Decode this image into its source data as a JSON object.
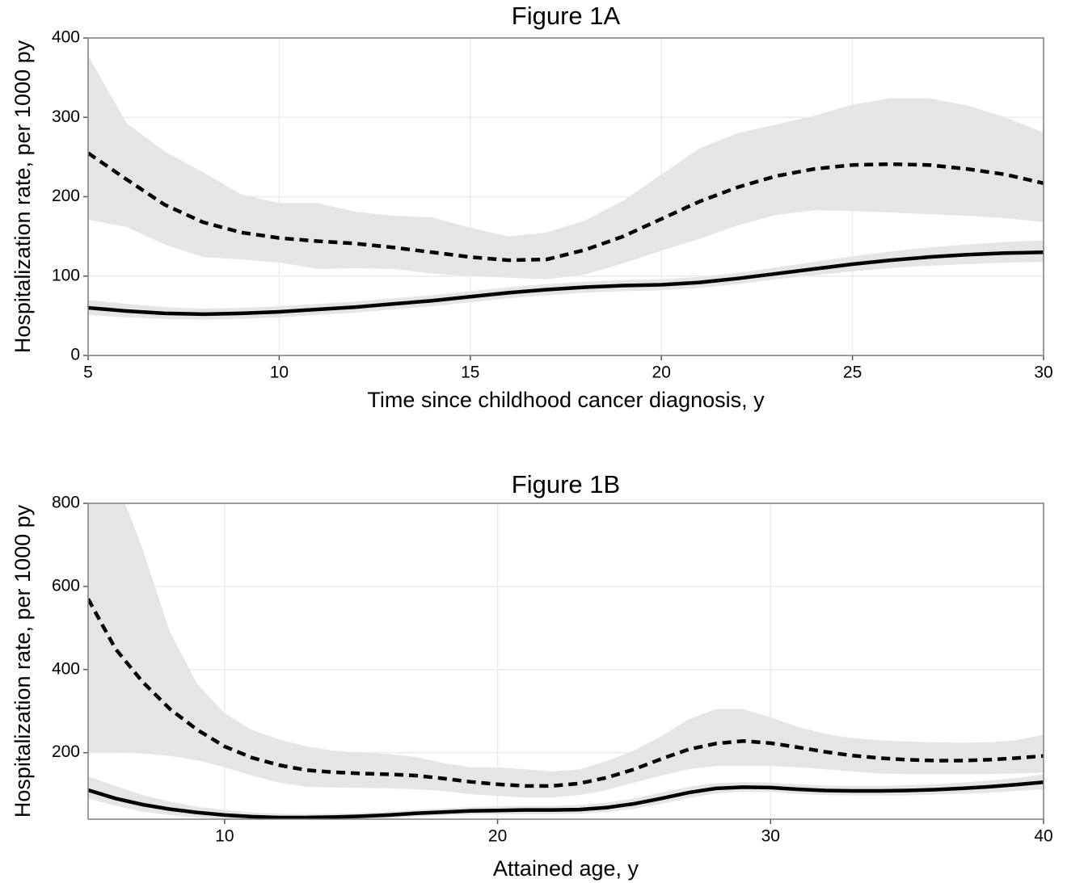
{
  "chart_data": [
    {
      "type": "line",
      "title": "Figure 1A",
      "x_label": "Time since childhood cancer diagnosis, y",
      "y_label": "Hospitalization rate, per 1000 py",
      "x": [
        5,
        6,
        7,
        8,
        9,
        10,
        11,
        12,
        13,
        14,
        15,
        16,
        17,
        18,
        19,
        20,
        21,
        22,
        23,
        24,
        25,
        26,
        27,
        28,
        29,
        30
      ],
      "xlim": [
        5,
        30
      ],
      "xticks": [
        5,
        10,
        15,
        20,
        25,
        30
      ],
      "ylim": [
        0,
        400
      ],
      "yticks": [
        0,
        100,
        200,
        300,
        400
      ],
      "grid": true,
      "band_color": "#e5e5e5",
      "series": [
        {
          "color": "#000000",
          "linestyle": "dashed",
          "values": [
            255,
            222,
            190,
            168,
            155,
            148,
            144,
            141,
            136,
            130,
            124,
            120,
            121,
            133,
            150,
            172,
            194,
            212,
            226,
            235,
            240,
            241,
            240,
            235,
            228,
            217
          ],
          "upper": [
            378,
            293,
            257,
            231,
            203,
            192,
            192,
            181,
            176,
            174,
            161,
            150,
            155,
            170,
            195,
            228,
            261,
            280,
            291,
            302,
            316,
            324,
            324,
            315,
            300,
            281
          ],
          "lower": [
            171,
            162,
            140,
            124,
            121,
            117,
            109,
            110,
            109,
            103,
            100,
            98,
            96,
            102,
            116,
            132,
            147,
            164,
            177,
            183,
            182,
            180,
            178,
            176,
            173,
            168
          ]
        },
        {
          "color": "#000000",
          "linestyle": "solid",
          "values": [
            60,
            56,
            53,
            52,
            53,
            55,
            58,
            61,
            65,
            69,
            74,
            79,
            83,
            86,
            88,
            89,
            92,
            97,
            103,
            109,
            115,
            120,
            124,
            127,
            129,
            130
          ],
          "upper": [
            70,
            65,
            61,
            59,
            60,
            62,
            65,
            68,
            72,
            76,
            81,
            86,
            90,
            93,
            95,
            96,
            99,
            104,
            111,
            118,
            125,
            131,
            136,
            140,
            143,
            145
          ],
          "lower": [
            51,
            48,
            46,
            45,
            46,
            48,
            51,
            54,
            58,
            62,
            67,
            72,
            76,
            79,
            81,
            82,
            85,
            90,
            96,
            101,
            106,
            110,
            113,
            115,
            117,
            118
          ]
        }
      ]
    },
    {
      "type": "line",
      "title": "Figure 1B",
      "x_label": "Attained age, y",
      "y_label": "Hospitalization rate, per 1000 py",
      "x": [
        5,
        6,
        7,
        8,
        9,
        10,
        11,
        12,
        13,
        14,
        15,
        16,
        17,
        18,
        19,
        20,
        21,
        22,
        23,
        24,
        25,
        26,
        27,
        28,
        29,
        30,
        31,
        32,
        33,
        34,
        35,
        36,
        37,
        38,
        39,
        40
      ],
      "xlim": [
        5,
        40
      ],
      "xticks": [
        10,
        20,
        30,
        40
      ],
      "ylim": [
        40,
        800
      ],
      "yticks": [
        200,
        400,
        600,
        800
      ],
      "grid": true,
      "band_color": "#e5e5e5",
      "series": [
        {
          "color": "#000000",
          "linestyle": "dashed",
          "values": [
            570,
            450,
            370,
            305,
            255,
            215,
            188,
            170,
            158,
            153,
            150,
            148,
            145,
            138,
            130,
            124,
            120,
            120,
            126,
            140,
            160,
            185,
            208,
            222,
            228,
            223,
            213,
            202,
            193,
            187,
            183,
            181,
            181,
            183,
            187,
            192
          ],
          "upper": [
            900,
            860,
            690,
            490,
            365,
            295,
            255,
            232,
            215,
            205,
            200,
            197,
            190,
            175,
            165,
            165,
            160,
            155,
            160,
            180,
            205,
            240,
            280,
            305,
            305,
            285,
            262,
            245,
            235,
            230,
            227,
            225,
            224,
            225,
            230,
            243
          ],
          "lower": [
            202,
            202,
            198,
            192,
            182,
            165,
            145,
            128,
            118,
            116,
            115,
            114,
            112,
            108,
            100,
            96,
            92,
            92,
            98,
            110,
            128,
            145,
            160,
            168,
            168,
            168,
            165,
            160,
            155,
            150,
            148,
            148,
            148,
            148,
            150,
            152
          ]
        },
        {
          "color": "#000000",
          "linestyle": "solid",
          "values": [
            110,
            90,
            75,
            64,
            56,
            50,
            46,
            44,
            44,
            45,
            47,
            50,
            54,
            57,
            60,
            61,
            62,
            62,
            63,
            68,
            77,
            90,
            104,
            114,
            117,
            116,
            112,
            109,
            108,
            108,
            109,
            111,
            114,
            118,
            123,
            129
          ],
          "upper": [
            143,
            120,
            98,
            82,
            70,
            62,
            56,
            53,
            52,
            53,
            55,
            58,
            62,
            66,
            69,
            71,
            72,
            72,
            74,
            80,
            90,
            104,
            118,
            127,
            129,
            128,
            124,
            121,
            120,
            120,
            122,
            124,
            128,
            133,
            139,
            148
          ],
          "lower": [
            90,
            72,
            58,
            50,
            44,
            40,
            38,
            36,
            36,
            37,
            39,
            42,
            46,
            49,
            51,
            52,
            52,
            52,
            53,
            57,
            65,
            77,
            91,
            102,
            106,
            105,
            101,
            98,
            97,
            97,
            97,
            99,
            101,
            104,
            108,
            112
          ]
        }
      ]
    }
  ]
}
